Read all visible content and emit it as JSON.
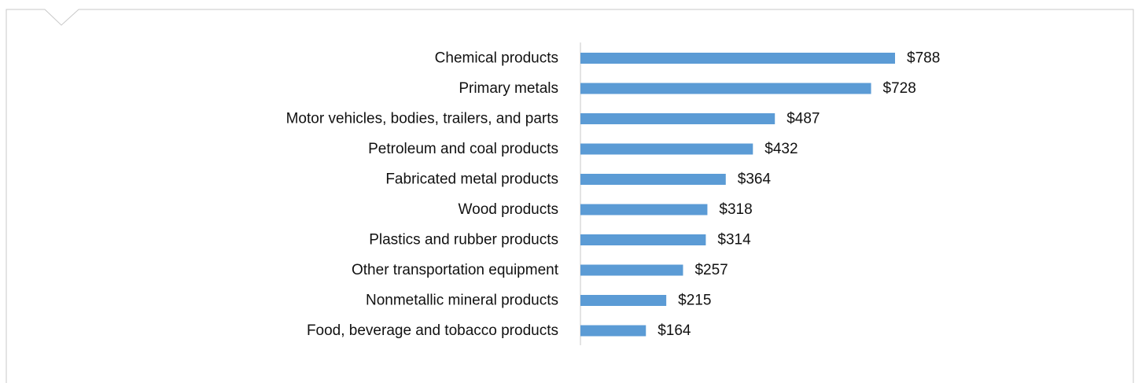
{
  "colors": {
    "bar": "#5b9bd5",
    "axis": "#c8c8c8",
    "frame": "#c8c8c8",
    "text": "#111111"
  },
  "chart_data": {
    "type": "bar",
    "orientation": "horizontal",
    "categories": [
      "Chemical products",
      "Primary metals",
      "Motor vehicles, bodies, trailers, and parts",
      "Petroleum and coal products",
      "Fabricated metal products",
      "Wood products",
      "Plastics and rubber products",
      "Other transportation equipment",
      "Nonmetallic mineral products",
      "Food, beverage and tobacco products"
    ],
    "values": [
      788,
      728,
      487,
      432,
      364,
      318,
      314,
      257,
      215,
      164
    ],
    "data_labels": [
      "$788",
      "$728",
      "$487",
      "$432",
      "$364",
      "$318",
      "$314",
      "$257",
      "$215",
      "$164"
    ],
    "title": "",
    "xlabel": "",
    "ylabel": "",
    "xlim": [
      0,
      788
    ],
    "grid": false,
    "legend": "none"
  }
}
